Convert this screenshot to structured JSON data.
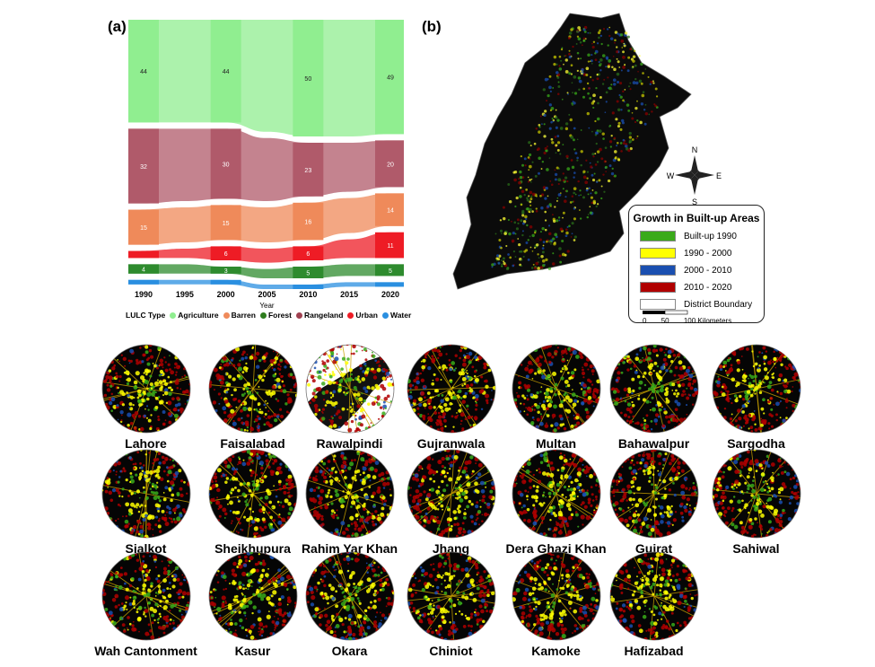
{
  "panels": {
    "a": "(a)",
    "b": "(b)"
  },
  "chart_data": {
    "type": "alluvial",
    "title": "",
    "xlabel": "Year",
    "ylabel": "",
    "x": [
      "1990",
      "1995",
      "2000",
      "2005",
      "2010",
      "2015",
      "2020"
    ],
    "labeled_years": [
      "1990",
      "2000",
      "2010",
      "2020"
    ],
    "series": [
      {
        "name": "Agriculture",
        "color": "#90ee90",
        "values": [
          44,
          44,
          44,
          48,
          50,
          50,
          49
        ],
        "labels": [
          "44",
          "",
          "44",
          "",
          "50",
          "",
          "49"
        ]
      },
      {
        "name": "Rangeland",
        "color": "#b05a6a",
        "values": [
          32,
          31,
          30,
          27,
          23,
          21,
          20
        ],
        "labels": [
          "32",
          "",
          "30",
          "",
          "23",
          "",
          "20"
        ]
      },
      {
        "name": "Barren",
        "color": "#ef8a5a",
        "values": [
          15,
          15,
          15,
          15,
          16,
          15,
          14
        ],
        "labels": [
          "15",
          "",
          "15",
          "",
          "16",
          "",
          "14"
        ]
      },
      {
        "name": "Urban",
        "color": "#ee1c25",
        "values": [
          3,
          4,
          6,
          6,
          6,
          8,
          11
        ],
        "labels": [
          "",
          "",
          "6",
          "",
          "6",
          "",
          "11"
        ]
      },
      {
        "name": "Forest",
        "color": "#2e8b2e",
        "values": [
          4,
          4,
          3,
          4,
          5,
          5,
          5
        ],
        "labels": [
          "4",
          "",
          "3",
          "",
          "5",
          "",
          "5"
        ]
      },
      {
        "name": "Water",
        "color": "#2a8fe0",
        "values": [
          1,
          1,
          1,
          1,
          1,
          1,
          1
        ],
        "labels": [
          "",
          "",
          "",
          "",
          "",
          "",
          ""
        ]
      }
    ]
  },
  "lulc_legend": {
    "title": "LULC Type",
    "items": [
      {
        "label": "Agriculture",
        "color": "#90ee90"
      },
      {
        "label": "Barren",
        "color": "#ef8a5a"
      },
      {
        "label": "Forest",
        "color": "#2e7d1e"
      },
      {
        "label": "Rangeland",
        "color": "#a04050"
      },
      {
        "label": "Urban",
        "color": "#ee1c25"
      },
      {
        "label": "Water",
        "color": "#2a8fe0"
      }
    ]
  },
  "built_up_legend": {
    "title": "Growth in Built-up Areas",
    "items": [
      {
        "label": "Built-up 1990",
        "color": "#3aaa1a"
      },
      {
        "label": "1990 - 2000",
        "color": "#ffff00"
      },
      {
        "label": "2000 - 2010",
        "color": "#1a4fb0"
      },
      {
        "label": "2010 - 2020",
        "color": "#b00000"
      },
      {
        "label": "District Boundary",
        "color": "#ffffff"
      }
    ],
    "scale": {
      "ticks": [
        "0",
        "50",
        "100"
      ],
      "unit": "Kilometers"
    }
  },
  "compass": {
    "n": "N",
    "s": "S",
    "e": "E",
    "w": "W"
  },
  "cities": [
    "Lahore",
    "Faisalabad",
    "Rawalpindi",
    "Gujranwala",
    "Multan",
    "Bahawalpur",
    "Sargodha",
    "Sialkot",
    "Sheikhupura",
    "Rahim Yar Khan",
    "Jhang",
    "Dera Ghazi Khan",
    "Gujrat",
    "Sahiwal",
    "Wah Cantonment",
    "Kasur",
    "Okara",
    "Chiniot",
    "Kamoke",
    "Hafizabad"
  ]
}
